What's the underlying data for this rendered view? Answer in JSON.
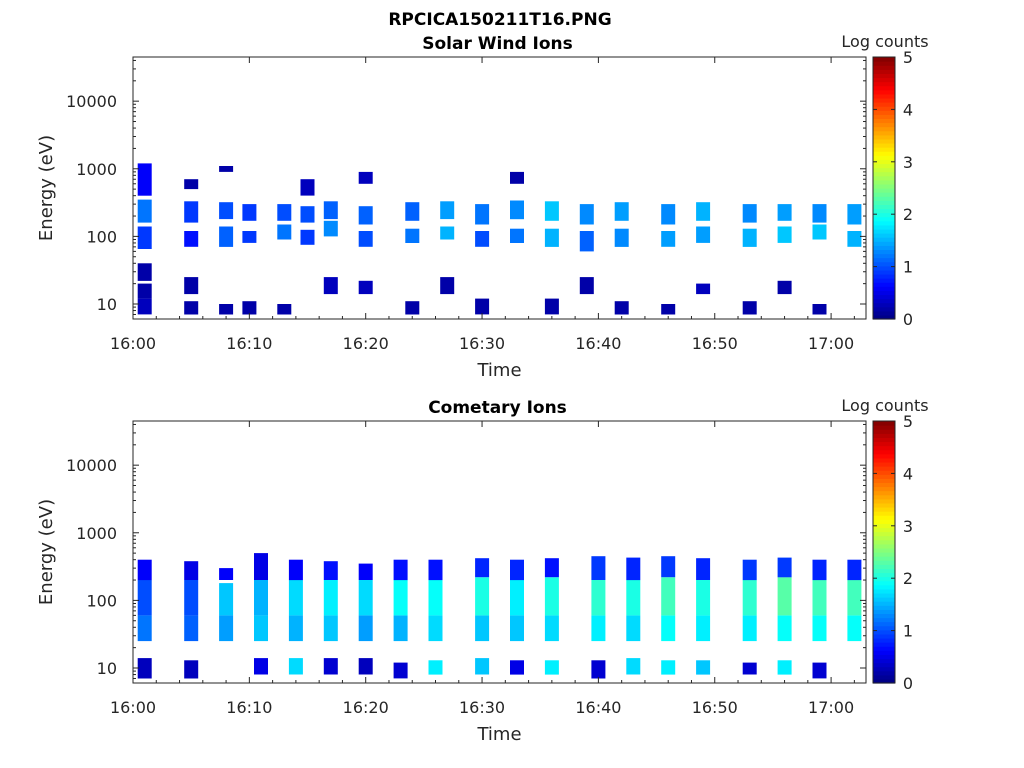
{
  "figure": {
    "title": "RPCICA150211T16.PNG"
  },
  "chart_data": [
    {
      "type": "heatmap",
      "title": "Solar Wind Ions",
      "xlabel": "Time",
      "ylabel": "Energy (eV)",
      "x_ticks": [
        "16:00",
        "16:10",
        "16:20",
        "16:30",
        "16:40",
        "16:50",
        "17:00"
      ],
      "x_range": [
        "16:00",
        "17:03"
      ],
      "y_scale": "log",
      "y_ticks": [
        {
          "value": 10,
          "label": "10"
        },
        {
          "value": 100,
          "label": "100"
        },
        {
          "value": 1000,
          "label": "1000"
        },
        {
          "value": 10000,
          "label": "10000"
        }
      ],
      "ylim": [
        6,
        45000
      ],
      "colorbar": {
        "label": "Log counts",
        "range": [
          0,
          5
        ],
        "ticks": [
          "0",
          "1",
          "2",
          "3",
          "4",
          "5"
        ],
        "colormap": "jet"
      },
      "columns": [
        {
          "t": "16:01",
          "bands": [
            [
              7,
              12,
              0.3
            ],
            [
              12,
              20,
              0.2
            ],
            [
              22,
              40,
              0.2
            ],
            [
              65,
              140,
              0.9
            ],
            [
              160,
              350,
              1.2
            ],
            [
              400,
              1200,
              0.6
            ]
          ]
        },
        {
          "t": "16:05",
          "bands": [
            [
              7,
              11,
              0.2
            ],
            [
              14,
              25,
              0.2
            ],
            [
              70,
              120,
              0.7
            ],
            [
              160,
              330,
              0.9
            ],
            [
              500,
              700,
              0.2
            ]
          ]
        },
        {
          "t": "16:08",
          "bands": [
            [
              7,
              10,
              0.2
            ],
            [
              70,
              140,
              1.1
            ],
            [
              180,
              320,
              1.0
            ],
            [
              900,
              1100,
              0.2
            ]
          ]
        },
        {
          "t": "16:10",
          "bands": [
            [
              7,
              11,
              0.2
            ],
            [
              80,
              120,
              0.9
            ],
            [
              170,
              300,
              0.9
            ]
          ]
        },
        {
          "t": "16:13",
          "bands": [
            [
              7,
              10,
              0.2
            ],
            [
              90,
              150,
              1.2
            ],
            [
              170,
              300,
              1.0
            ]
          ]
        },
        {
          "t": "16:15",
          "bands": [
            [
              75,
              125,
              0.9
            ],
            [
              160,
              280,
              1.0
            ],
            [
              400,
              700,
              0.3
            ]
          ]
        },
        {
          "t": "16:17",
          "bands": [
            [
              14,
              25,
              0.3
            ],
            [
              100,
              170,
              1.3
            ],
            [
              180,
              330,
              1.1
            ]
          ]
        },
        {
          "t": "16:20",
          "bands": [
            [
              14,
              22,
              0.3
            ],
            [
              70,
              120,
              1.0
            ],
            [
              150,
              280,
              1.1
            ],
            [
              600,
              900,
              0.3
            ]
          ]
        },
        {
          "t": "16:24",
          "bands": [
            [
              7,
              11,
              0.2
            ],
            [
              80,
              130,
              1.2
            ],
            [
              170,
              320,
              1.1
            ]
          ]
        },
        {
          "t": "16:27",
          "bands": [
            [
              14,
              25,
              0.2
            ],
            [
              90,
              140,
              1.5
            ],
            [
              180,
              330,
              1.4
            ]
          ]
        },
        {
          "t": "16:30",
          "bands": [
            [
              7,
              12,
              0.2
            ],
            [
              70,
              120,
              1.0
            ],
            [
              150,
              300,
              1.2
            ]
          ]
        },
        {
          "t": "16:33",
          "bands": [
            [
              80,
              130,
              1.2
            ],
            [
              180,
              340,
              1.3
            ],
            [
              600,
              900,
              0.2
            ]
          ]
        },
        {
          "t": "16:36",
          "bands": [
            [
              7,
              12,
              0.2
            ],
            [
              70,
              130,
              1.5
            ],
            [
              170,
              330,
              1.6
            ]
          ]
        },
        {
          "t": "16:39",
          "bands": [
            [
              14,
              25,
              0.2
            ],
            [
              60,
              120,
              1.1
            ],
            [
              150,
              300,
              1.3
            ]
          ]
        },
        {
          "t": "16:42",
          "bands": [
            [
              7,
              11,
              0.2
            ],
            [
              70,
              130,
              1.3
            ],
            [
              170,
              320,
              1.4
            ]
          ]
        },
        {
          "t": "16:46",
          "bands": [
            [
              7,
              10,
              0.2
            ],
            [
              70,
              120,
              1.4
            ],
            [
              150,
              300,
              1.3
            ]
          ]
        },
        {
          "t": "16:49",
          "bands": [
            [
              14,
              20,
              0.3
            ],
            [
              80,
              140,
              1.4
            ],
            [
              170,
              320,
              1.5
            ]
          ]
        },
        {
          "t": "16:53",
          "bands": [
            [
              7,
              11,
              0.2
            ],
            [
              70,
              130,
              1.5
            ],
            [
              160,
              300,
              1.3
            ]
          ]
        },
        {
          "t": "16:56",
          "bands": [
            [
              14,
              22,
              0.2
            ],
            [
              80,
              140,
              1.6
            ],
            [
              170,
              300,
              1.4
            ]
          ]
        },
        {
          "t": "16:59",
          "bands": [
            [
              7,
              10,
              0.2
            ],
            [
              90,
              150,
              1.6
            ],
            [
              160,
              300,
              1.3
            ]
          ]
        },
        {
          "t": "17:02",
          "bands": [
            [
              70,
              120,
              1.5
            ],
            [
              150,
              300,
              1.4
            ]
          ]
        }
      ]
    },
    {
      "type": "heatmap",
      "title": "Cometary Ions",
      "xlabel": "Time",
      "ylabel": "Energy (eV)",
      "x_ticks": [
        "16:00",
        "16:10",
        "16:20",
        "16:30",
        "16:40",
        "16:50",
        "17:00"
      ],
      "x_range": [
        "16:00",
        "17:03"
      ],
      "y_scale": "log",
      "y_ticks": [
        {
          "value": 10,
          "label": "10"
        },
        {
          "value": 100,
          "label": "100"
        },
        {
          "value": 1000,
          "label": "1000"
        },
        {
          "value": 10000,
          "label": "10000"
        }
      ],
      "ylim": [
        6,
        45000
      ],
      "colorbar": {
        "label": "Log counts",
        "range": [
          0,
          5
        ],
        "ticks": [
          "0",
          "1",
          "2",
          "3",
          "4",
          "5"
        ],
        "colormap": "jet"
      },
      "columns": [
        {
          "t": "16:01",
          "bands": [
            [
              7,
              14,
              0.3
            ],
            [
              25,
              60,
              1.2
            ],
            [
              60,
              200,
              1.0
            ],
            [
              200,
              400,
              0.6
            ]
          ]
        },
        {
          "t": "16:05",
          "bands": [
            [
              7,
              13,
              0.3
            ],
            [
              25,
              60,
              1.1
            ],
            [
              60,
              200,
              1.0
            ],
            [
              200,
              380,
              0.5
            ]
          ]
        },
        {
          "t": "16:08",
          "bands": [
            [
              25,
              60,
              1.4
            ],
            [
              60,
              180,
              1.6
            ],
            [
              200,
              300,
              0.6
            ]
          ]
        },
        {
          "t": "16:11",
          "bands": [
            [
              8,
              14,
              0.5
            ],
            [
              25,
              60,
              1.6
            ],
            [
              60,
              200,
              1.5
            ],
            [
              200,
              500,
              0.5
            ]
          ]
        },
        {
          "t": "16:14",
          "bands": [
            [
              8,
              14,
              1.7
            ],
            [
              25,
              60,
              1.5
            ],
            [
              60,
              200,
              1.7
            ],
            [
              200,
              400,
              0.6
            ]
          ]
        },
        {
          "t": "16:17",
          "bands": [
            [
              8,
              14,
              0.4
            ],
            [
              25,
              60,
              1.6
            ],
            [
              60,
              200,
              1.8
            ],
            [
              200,
              380,
              0.7
            ]
          ]
        },
        {
          "t": "16:20",
          "bands": [
            [
              8,
              14,
              0.3
            ],
            [
              25,
              60,
              1.4
            ],
            [
              60,
              200,
              1.7
            ],
            [
              200,
              350,
              0.6
            ]
          ]
        },
        {
          "t": "16:23",
          "bands": [
            [
              7,
              12,
              0.4
            ],
            [
              25,
              60,
              1.5
            ],
            [
              60,
              200,
              1.9
            ],
            [
              200,
              400,
              0.7
            ]
          ]
        },
        {
          "t": "16:26",
          "bands": [
            [
              8,
              13,
              1.8
            ],
            [
              25,
              60,
              1.7
            ],
            [
              60,
              200,
              1.9
            ],
            [
              200,
              400,
              0.7
            ]
          ]
        },
        {
          "t": "16:30",
          "bands": [
            [
              8,
              14,
              1.6
            ],
            [
              25,
              60,
              1.6
            ],
            [
              60,
              220,
              2.0
            ],
            [
              220,
              420,
              0.8
            ]
          ]
        },
        {
          "t": "16:33",
          "bands": [
            [
              8,
              13,
              0.5
            ],
            [
              25,
              60,
              1.6
            ],
            [
              60,
              200,
              1.8
            ],
            [
              200,
              400,
              0.8
            ]
          ]
        },
        {
          "t": "16:36",
          "bands": [
            [
              8,
              13,
              1.8
            ],
            [
              25,
              60,
              1.7
            ],
            [
              60,
              220,
              2.0
            ],
            [
              220,
              420,
              0.7
            ]
          ]
        },
        {
          "t": "16:40",
          "bands": [
            [
              7,
              13,
              0.4
            ],
            [
              25,
              60,
              1.8
            ],
            [
              60,
              200,
              2.1
            ],
            [
              200,
              450,
              0.9
            ]
          ]
        },
        {
          "t": "16:43",
          "bands": [
            [
              8,
              14,
              1.7
            ],
            [
              25,
              60,
              1.7
            ],
            [
              60,
              200,
              2.0
            ],
            [
              200,
              430,
              0.8
            ]
          ]
        },
        {
          "t": "16:46",
          "bands": [
            [
              8,
              13,
              1.8
            ],
            [
              25,
              60,
              1.9
            ],
            [
              60,
              220,
              2.2
            ],
            [
              220,
              450,
              0.9
            ]
          ]
        },
        {
          "t": "16:49",
          "bands": [
            [
              8,
              13,
              1.6
            ],
            [
              25,
              60,
              1.8
            ],
            [
              60,
              200,
              2.0
            ],
            [
              200,
              420,
              0.8
            ]
          ]
        },
        {
          "t": "16:53",
          "bands": [
            [
              8,
              12,
              0.4
            ],
            [
              25,
              60,
              1.8
            ],
            [
              60,
              200,
              2.1
            ],
            [
              200,
              400,
              0.9
            ]
          ]
        },
        {
          "t": "16:56",
          "bands": [
            [
              8,
              13,
              1.8
            ],
            [
              25,
              60,
              1.9
            ],
            [
              60,
              220,
              2.3
            ],
            [
              220,
              430,
              0.9
            ]
          ]
        },
        {
          "t": "16:59",
          "bands": [
            [
              7,
              12,
              0.4
            ],
            [
              25,
              60,
              1.9
            ],
            [
              60,
              200,
              2.2
            ],
            [
              200,
              400,
              0.8
            ]
          ]
        },
        {
          "t": "17:02",
          "bands": [
            [
              25,
              60,
              1.9
            ],
            [
              60,
              200,
              2.2
            ],
            [
              200,
              400,
              0.8
            ]
          ]
        }
      ]
    }
  ]
}
